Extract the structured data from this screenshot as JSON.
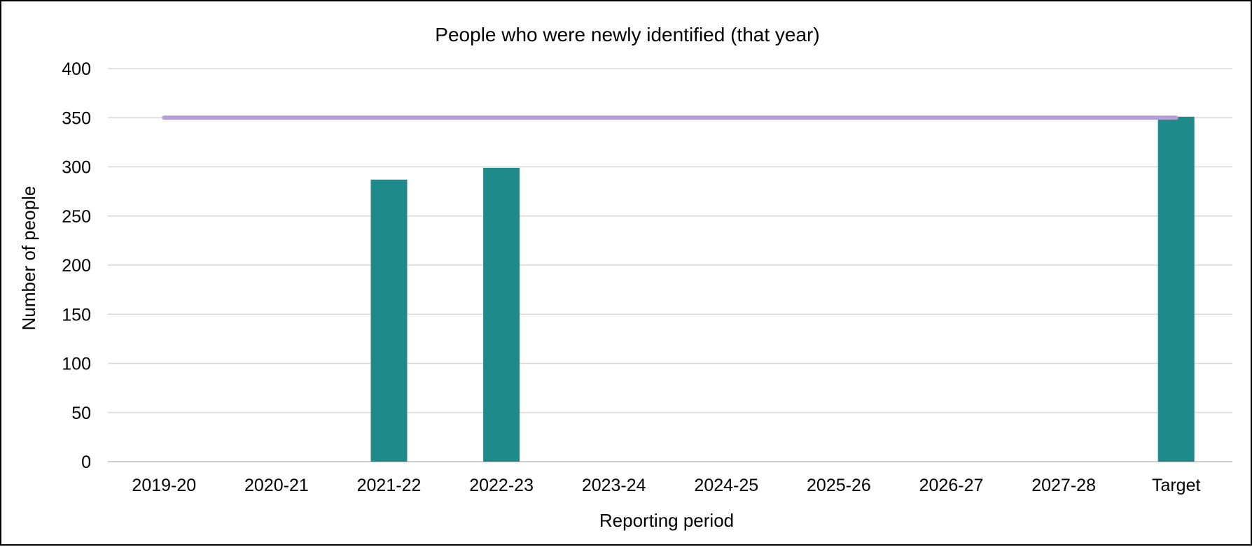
{
  "chart_data": {
    "type": "bar",
    "title": "People who were newly identified (that year)",
    "xlabel": "Reporting period",
    "ylabel": "Number of people",
    "categories": [
      "2019-20",
      "2020-21",
      "2021-22",
      "2022-23",
      "2023-24",
      "2024-25",
      "2025-26",
      "2026-27",
      "2027-28",
      "Target"
    ],
    "series": [
      {
        "type": "bar",
        "values": [
          null,
          null,
          287,
          299,
          null,
          null,
          null,
          null,
          null,
          351
        ],
        "color": "#1e8a8a"
      },
      {
        "type": "line",
        "values": [
          350,
          350,
          350,
          350,
          350,
          350,
          350,
          350,
          350,
          350
        ],
        "color": "#b49fd6"
      }
    ],
    "ylim": [
      0,
      400
    ],
    "yticks": [
      0,
      50,
      100,
      150,
      200,
      250,
      300,
      350,
      400
    ],
    "grid": true,
    "legend": "none"
  }
}
